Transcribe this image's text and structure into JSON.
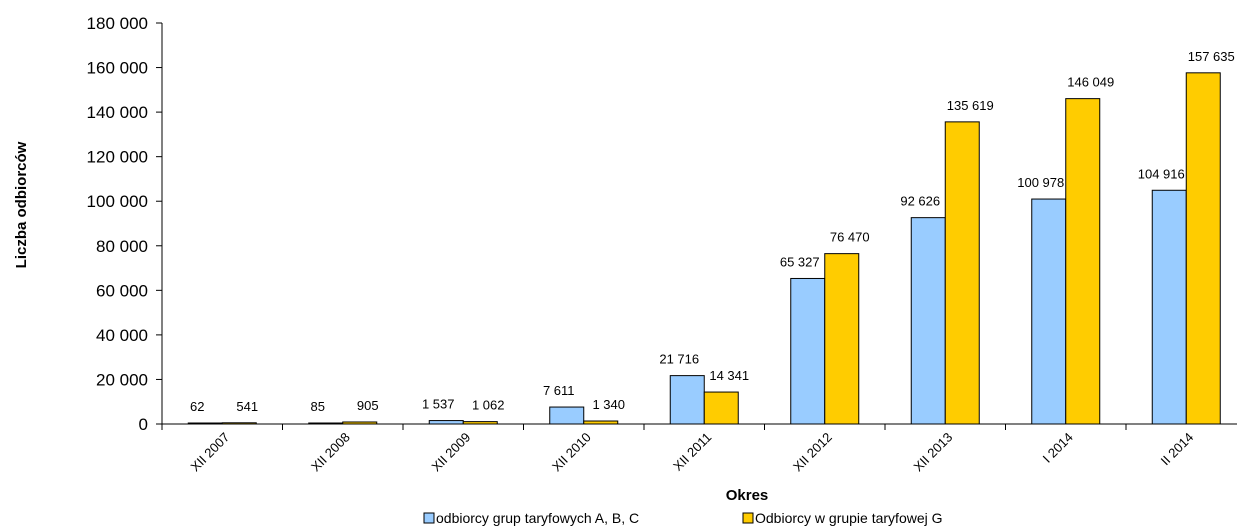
{
  "colors": {
    "series_a": "#99ccff",
    "series_g": "#ffcc00",
    "stroke": "#000000"
  },
  "chart_data": {
    "type": "bar",
    "title": "",
    "xlabel": "Okres",
    "ylabel": "Liczba odbiorców",
    "ylim": [
      0,
      180000
    ],
    "yticks": [
      "0",
      "20 000",
      "40 000",
      "60 000",
      "80 000",
      "100 000",
      "120 000",
      "140 000",
      "160 000",
      "180 000"
    ],
    "categories": [
      "XII 2007",
      "XII 2008",
      "XII 2009",
      "XII 2010",
      "XII 2011",
      "XII 2012",
      "XII 2013",
      "I 2014",
      "II 2014"
    ],
    "series": [
      {
        "name": "odbiorcy grup taryfowych A, B, C",
        "values": [
          62,
          85,
          1537,
          7611,
          21716,
          65327,
          92626,
          100978,
          104916
        ],
        "labels": [
          "62",
          "85",
          "1 537",
          "7 611",
          "21 716",
          "65 327",
          "92 626",
          "100 978",
          "104 916"
        ]
      },
      {
        "name": "Odbiorcy w grupie taryfowej G",
        "values": [
          541,
          905,
          1062,
          1340,
          14341,
          76470,
          135619,
          146049,
          157635
        ],
        "labels": [
          "541",
          "905",
          "1 062",
          "1 340",
          "14 341",
          "76 470",
          "135 619",
          "146 049",
          "157 635"
        ]
      }
    ],
    "grid": false,
    "legend_position": "bottom"
  }
}
